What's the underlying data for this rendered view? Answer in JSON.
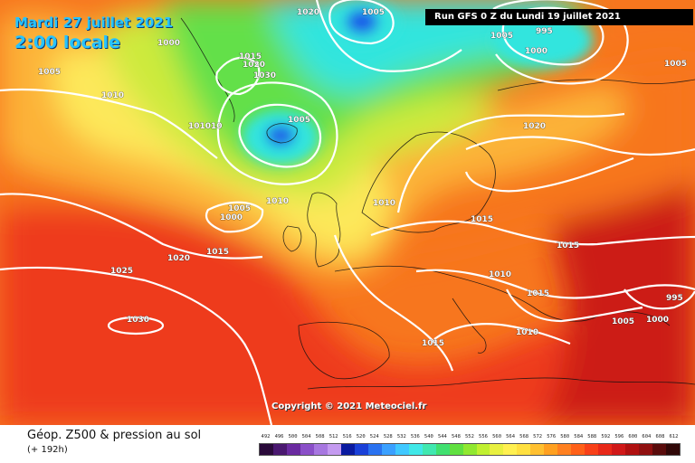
{
  "header": {
    "date": "Mardi 27 juillet 2021",
    "time": "2:00 locale",
    "run": "Run GFS 0 Z du Lundi 19 juillet 2021"
  },
  "copyright": "Copyright © 2021 Meteociel.fr",
  "legend": {
    "title": "Géop. Z500 & pression au sol",
    "subtitle": "(+ 192h)",
    "scale_labels": [
      "492",
      "496",
      "500",
      "504",
      "508",
      "512",
      "516",
      "520",
      "524",
      "528",
      "532",
      "536",
      "540",
      "544",
      "548",
      "552",
      "556",
      "560",
      "564",
      "568",
      "572",
      "576",
      "580",
      "584",
      "588",
      "592",
      "596",
      "600",
      "604",
      "608",
      "612"
    ],
    "scale_colors": [
      "#2a0a3a",
      "#4a1870",
      "#6a2aa0",
      "#8a4fc8",
      "#a777e0",
      "#c49af0",
      "#0a1aa0",
      "#1a40d8",
      "#2a72f0",
      "#3aa0ff",
      "#40c8ff",
      "#40e8e8",
      "#40e8b0",
      "#40e070",
      "#60e040",
      "#90e830",
      "#c0f030",
      "#e8f040",
      "#fff050",
      "#ffe040",
      "#ffc030",
      "#ffa020",
      "#ff8020",
      "#ff6018",
      "#f84018",
      "#e82818",
      "#d01818",
      "#b01010",
      "#901010",
      "#5a0c0c",
      "#300808"
    ]
  },
  "isobars": [
    "1005",
    "1000",
    "1005",
    "1010",
    "1015",
    "1020",
    "1020",
    "1030",
    "101010",
    "1005",
    "1010",
    "1005",
    "1000",
    "1010",
    "1010",
    "1015",
    "1020",
    "1025",
    "1030",
    "1005",
    "995",
    "1000",
    "1005",
    "1020",
    "1015",
    "1015",
    "1015",
    "995",
    "1005",
    "1000",
    "1010",
    "1015"
  ],
  "map_colors": {
    "red_dark": "#cc1a12",
    "red": "#ee3a1c",
    "orange": "#f7761e",
    "yellow_orange": "#fcb238",
    "yellow": "#fde85a",
    "yellow_green": "#cdea3e",
    "green": "#63e04a",
    "cyan": "#33e5de",
    "blue": "#1f5ce8"
  }
}
